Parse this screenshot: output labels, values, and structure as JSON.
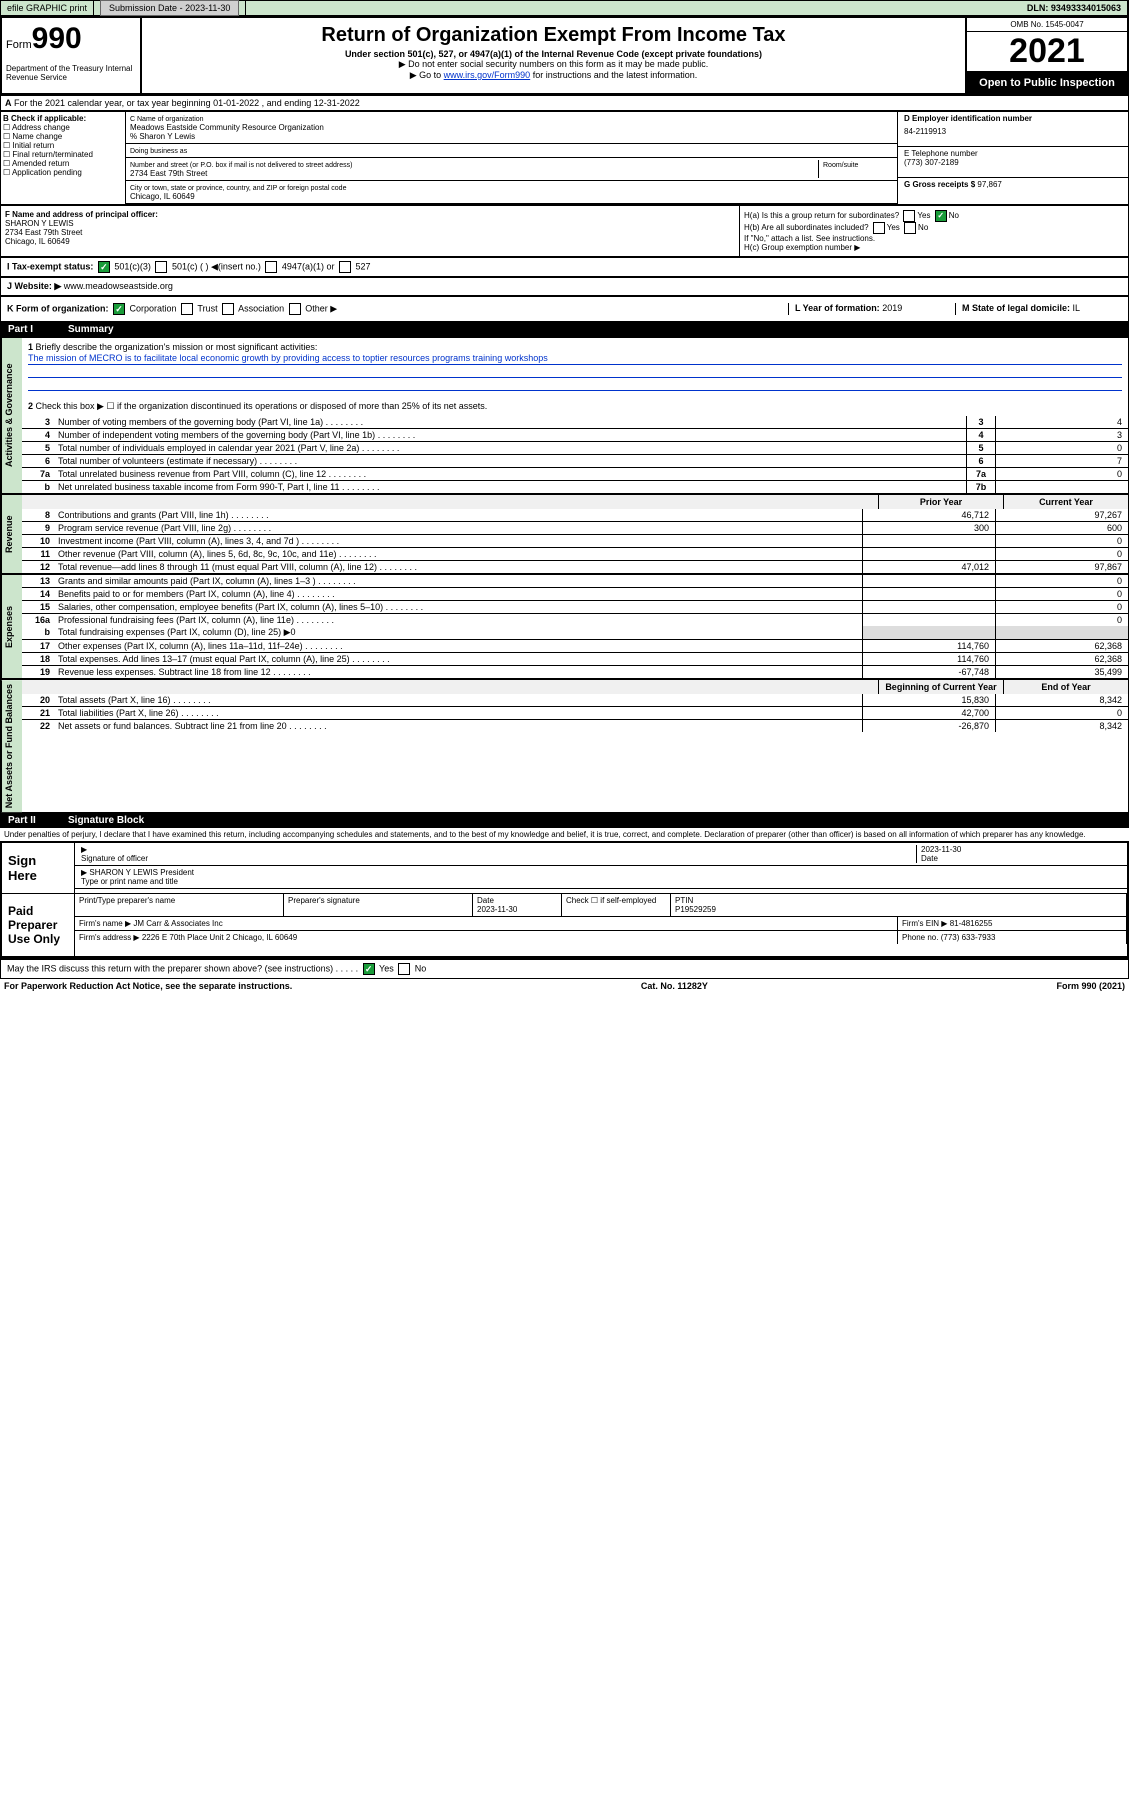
{
  "header_bar": {
    "efile": "efile GRAPHIC print",
    "submission_label": "Submission Date - ",
    "submission_date": "2023-11-30",
    "dln_label": "DLN: ",
    "dln": "93493334015063"
  },
  "form_header": {
    "form_word": "Form",
    "form_num": "990",
    "dept": "Department of the Treasury Internal Revenue Service",
    "title": "Return of Organization Exempt From Income Tax",
    "subtitle": "Under section 501(c), 527, or 4947(a)(1) of the Internal Revenue Code (except private foundations)",
    "note1": "▶ Do not enter social security numbers on this form as it may be made public.",
    "note2_pre": "▶ Go to ",
    "note2_link": "www.irs.gov/Form990",
    "note2_post": " for instructions and the latest information.",
    "omb": "OMB No. 1545-0047",
    "year": "2021",
    "inspect": "Open to Public Inspection"
  },
  "line_a": "For the 2021 calendar year, or tax year beginning 01-01-2022   , and ending 12-31-2022",
  "check_b": {
    "label": "B Check if applicable:",
    "opts": [
      "Address change",
      "Name change",
      "Initial return",
      "Final return/terminated",
      "Amended return",
      "Application pending"
    ]
  },
  "block_c": {
    "name_lbl": "C Name of organization",
    "name": "Meadows Eastside Community Resource Organization",
    "care_of": "% Sharon Y Lewis",
    "dba_lbl": "Doing business as",
    "street_lbl": "Number and street (or P.O. box if mail is not delivered to street address)",
    "room_lbl": "Room/suite",
    "street": "2734 East 79th Street",
    "city_lbl": "City or town, state or province, country, and ZIP or foreign postal code",
    "city": "Chicago, IL  60649"
  },
  "block_d": {
    "ein_lbl": "D Employer identification number",
    "ein": "84-2119913",
    "phone_lbl": "E Telephone number",
    "phone": "(773) 307-2189",
    "gross_lbl": "G Gross receipts $ ",
    "gross": "97,867"
  },
  "block_f": {
    "lbl": "F  Name and address of principal officer:",
    "name": "SHARON Y LEWIS",
    "addr1": "2734 East 79th Street",
    "addr2": "Chicago, IL  60649"
  },
  "block_h": {
    "ha": "H(a)  Is this a group return for subordinates?",
    "hb": "H(b)  Are all subordinates included?",
    "hb_note": "If \"No,\" attach a list. See instructions.",
    "hc": "H(c)  Group exemption number ▶",
    "yes": "Yes",
    "no": "No"
  },
  "line_i": {
    "lbl": "I   Tax-exempt status:",
    "o1": "501(c)(3)",
    "o2": "501(c) (  ) ◀(insert no.)",
    "o3": "4947(a)(1) or",
    "o4": "527"
  },
  "line_j": {
    "lbl": "J   Website: ▶  ",
    "val": "www.meadowseastside.org"
  },
  "line_k": {
    "lbl": "K Form of organization:",
    "o1": "Corporation",
    "o2": "Trust",
    "o3": "Association",
    "o4": "Other ▶"
  },
  "line_l": {
    "lbl": "L Year of formation: ",
    "val": "2019"
  },
  "line_m": {
    "lbl": "M State of legal domicile: ",
    "val": "IL"
  },
  "part1": {
    "num": "Part I",
    "title": "Summary"
  },
  "summary": {
    "q1": "Briefly describe the organization's mission or most significant activities:",
    "mission": "The mission of MECRO is to facilitate local economic growth by providing access to toptier resources programs training workshops",
    "q2": "Check this box ▶ ☐  if the organization discontinued its operations or disposed of more than 25% of its net assets.",
    "lines_single": [
      {
        "n": "3",
        "t": "Number of voting members of the governing body (Part VI, line 1a)",
        "box": "3",
        "v": "4"
      },
      {
        "n": "4",
        "t": "Number of independent voting members of the governing body (Part VI, line 1b)",
        "box": "4",
        "v": "3"
      },
      {
        "n": "5",
        "t": "Total number of individuals employed in calendar year 2021 (Part V, line 2a)",
        "box": "5",
        "v": "0"
      },
      {
        "n": "6",
        "t": "Total number of volunteers (estimate if necessary)",
        "box": "6",
        "v": "7"
      },
      {
        "n": "7a",
        "t": "Total unrelated business revenue from Part VIII, column (C), line 12",
        "box": "7a",
        "v": "0"
      },
      {
        "n": "b",
        "t": "Net unrelated business taxable income from Form 990-T, Part I, line 11",
        "box": "7b",
        "v": ""
      }
    ],
    "col_hdr": {
      "c1": "Prior Year",
      "c2": "Current Year"
    },
    "rev": [
      {
        "n": "8",
        "t": "Contributions and grants (Part VIII, line 1h)",
        "p": "46,712",
        "c": "97,267"
      },
      {
        "n": "9",
        "t": "Program service revenue (Part VIII, line 2g)",
        "p": "300",
        "c": "600"
      },
      {
        "n": "10",
        "t": "Investment income (Part VIII, column (A), lines 3, 4, and 7d )",
        "p": "",
        "c": "0"
      },
      {
        "n": "11",
        "t": "Other revenue (Part VIII, column (A), lines 5, 6d, 8c, 9c, 10c, and 11e)",
        "p": "",
        "c": "0"
      },
      {
        "n": "12",
        "t": "Total revenue—add lines 8 through 11 (must equal Part VIII, column (A), line 12)",
        "p": "47,012",
        "c": "97,867"
      }
    ],
    "exp": [
      {
        "n": "13",
        "t": "Grants and similar amounts paid (Part IX, column (A), lines 1–3 )",
        "p": "",
        "c": "0"
      },
      {
        "n": "14",
        "t": "Benefits paid to or for members (Part IX, column (A), line 4)",
        "p": "",
        "c": "0"
      },
      {
        "n": "15",
        "t": "Salaries, other compensation, employee benefits (Part IX, column (A), lines 5–10)",
        "p": "",
        "c": "0"
      },
      {
        "n": "16a",
        "t": "Professional fundraising fees (Part IX, column (A), line 11e)",
        "p": "",
        "c": "0"
      }
    ],
    "line_b": "Total fundraising expenses (Part IX, column (D), line 25) ▶0",
    "exp2": [
      {
        "n": "17",
        "t": "Other expenses (Part IX, column (A), lines 11a–11d, 11f–24e)",
        "p": "114,760",
        "c": "62,368"
      },
      {
        "n": "18",
        "t": "Total expenses. Add lines 13–17 (must equal Part IX, column (A), line 25)",
        "p": "114,760",
        "c": "62,368"
      },
      {
        "n": "19",
        "t": "Revenue less expenses. Subtract line 18 from line 12",
        "p": "-67,748",
        "c": "35,499"
      }
    ],
    "na_hdr": {
      "c1": "Beginning of Current Year",
      "c2": "End of Year"
    },
    "na": [
      {
        "n": "20",
        "t": "Total assets (Part X, line 16)",
        "p": "15,830",
        "c": "8,342"
      },
      {
        "n": "21",
        "t": "Total liabilities (Part X, line 26)",
        "p": "42,700",
        "c": "0"
      },
      {
        "n": "22",
        "t": "Net assets or fund balances. Subtract line 21 from line 20",
        "p": "-26,870",
        "c": "8,342"
      }
    ]
  },
  "vtabs": {
    "ag": "Activities & Governance",
    "rev": "Revenue",
    "exp": "Expenses",
    "na": "Net Assets or Fund Balances"
  },
  "part2": {
    "num": "Part II",
    "title": "Signature Block"
  },
  "penalty": "Under penalties of perjury, I declare that I have examined this return, including accompanying schedules and statements, and to the best of my knowledge and belief, it is true, correct, and complete. Declaration of preparer (other than officer) is based on all information of which preparer has any knowledge.",
  "sign": {
    "lbl": "Sign Here",
    "sig_lbl": "Signature of officer",
    "date_lbl": "Date",
    "date": "2023-11-30",
    "name": "SHARON Y LEWIS  President",
    "name_lbl": "Type or print name and title"
  },
  "prep": {
    "lbl": "Paid Preparer Use Only",
    "h1": "Print/Type preparer's name",
    "h2": "Preparer's signature",
    "h3": "Date",
    "h3v": "2023-11-30",
    "h4": "Check ☐ if self-employed",
    "h5": "PTIN",
    "h5v": "P19529259",
    "firm_lbl": "Firm's name    ▶ ",
    "firm": "JM Carr & Associates Inc",
    "ein_lbl": "Firm's EIN ▶ ",
    "ein": "81-4816255",
    "addr_lbl": "Firm's address ▶ ",
    "addr": "2226 E 70th Place Unit 2 Chicago, IL  60649",
    "phone_lbl": "Phone no. ",
    "phone": "(773) 633-7933"
  },
  "may_discuss": "May the IRS discuss this return with the preparer shown above? (see instructions)",
  "footer": {
    "l": "For Paperwork Reduction Act Notice, see the separate instructions.",
    "m": "Cat. No. 11282Y",
    "r": "Form 990 (2021)"
  }
}
